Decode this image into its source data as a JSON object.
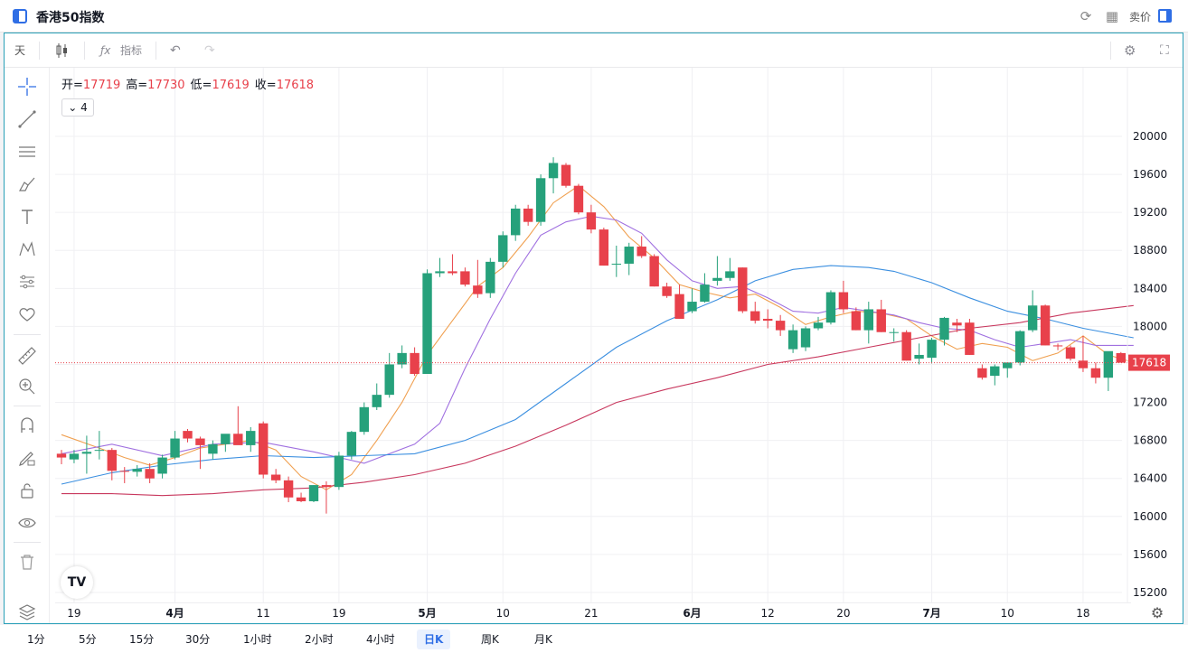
{
  "window": {
    "title": "香港50指数",
    "sell_label": "卖价"
  },
  "toolbar": {
    "interval": "天",
    "indicator_label": "指标"
  },
  "legend": {
    "open_label": "开=",
    "open": "17719",
    "high_label": "高=",
    "high": "17730",
    "low_label": "低=",
    "low": "17619",
    "close_label": "收=",
    "close": "17618",
    "indicator_count": "4"
  },
  "price_axis": {
    "ticks": [
      "20000",
      "19600",
      "19200",
      "18800",
      "18400",
      "18000",
      "17600",
      "17200",
      "16800",
      "16400",
      "16000",
      "15600",
      "15200"
    ],
    "last_price": "17618"
  },
  "x_axis": {
    "labels": [
      "19",
      "4月",
      "11",
      "19",
      "5月",
      "10",
      "21",
      "6月",
      "12",
      "20",
      "7月",
      "10",
      "18"
    ]
  },
  "timeframes": [
    {
      "label": "1分"
    },
    {
      "label": "5分"
    },
    {
      "label": "15分"
    },
    {
      "label": "30分"
    },
    {
      "label": "1小时"
    },
    {
      "label": "2小时"
    },
    {
      "label": "4小时"
    },
    {
      "label": "日K",
      "active": true
    },
    {
      "label": "周K"
    },
    {
      "label": "月K"
    }
  ],
  "colors": {
    "up": "#26a17b",
    "down": "#e8414b",
    "ma5": "#f0a050",
    "ma10": "#a070e0",
    "ma20": "#3b8fe0",
    "ma60": "#c8385e",
    "accent": "#2f6ee5"
  },
  "icons": {
    "left_tools": [
      "crosshair-icon",
      "trend-line-icon",
      "parallel-lines-icon",
      "brush-icon",
      "text-icon",
      "pattern-icon",
      "forecast-icon",
      "heart-icon",
      "ruler-icon",
      "zoom-in-icon",
      "magnet-icon",
      "lock-draw-icon",
      "lock-icon",
      "eye-icon",
      "trash-icon"
    ]
  },
  "chart_data": {
    "type": "candlestick",
    "title": "",
    "y_range": [
      15000,
      20200
    ],
    "x_tick_labels": [
      "19",
      "4月",
      "11",
      "19",
      "5月",
      "10",
      "21",
      "6月",
      "12",
      "20",
      "7月",
      "10",
      "18"
    ],
    "last_price": 17618,
    "candles": [
      [
        16660,
        16700,
        16550,
        16620
      ],
      [
        16600,
        16700,
        16560,
        16660
      ],
      [
        16660,
        16850,
        16450,
        16680
      ],
      [
        16700,
        16900,
        16600,
        16700
      ],
      [
        16700,
        16720,
        16380,
        16480
      ],
      [
        16480,
        16520,
        16350,
        16470
      ],
      [
        16470,
        16540,
        16420,
        16500
      ],
      [
        16500,
        16560,
        16350,
        16400
      ],
      [
        16450,
        16650,
        16400,
        16620
      ],
      [
        16620,
        16900,
        16600,
        16820
      ],
      [
        16900,
        16920,
        16780,
        16820
      ],
      [
        16820,
        16840,
        16500,
        16750
      ],
      [
        16660,
        16800,
        16600,
        16760
      ],
      [
        16760,
        16860,
        16680,
        16870
      ],
      [
        16870,
        17160,
        16760,
        16750
      ],
      [
        16750,
        16940,
        16680,
        16900
      ],
      [
        16980,
        17000,
        16400,
        16440
      ],
      [
        16440,
        16500,
        16350,
        16380
      ],
      [
        16380,
        16420,
        16150,
        16200
      ],
      [
        16200,
        16250,
        16150,
        16160
      ],
      [
        16160,
        16330,
        16150,
        16330
      ],
      [
        16330,
        16370,
        16030,
        16310
      ],
      [
        16310,
        16680,
        16280,
        16640
      ],
      [
        16640,
        16900,
        16600,
        16890
      ],
      [
        16890,
        17200,
        16860,
        17150
      ],
      [
        17150,
        17400,
        17120,
        17280
      ],
      [
        17280,
        17720,
        17250,
        17600
      ],
      [
        17600,
        17800,
        17560,
        17720
      ],
      [
        17720,
        17780,
        17480,
        17500
      ],
      [
        17500,
        18600,
        17500,
        18560
      ],
      [
        18560,
        18720,
        18520,
        18580
      ],
      [
        18580,
        18760,
        18540,
        18560
      ],
      [
        18580,
        18620,
        18420,
        18440
      ],
      [
        18430,
        18700,
        18300,
        18340
      ],
      [
        18350,
        18720,
        18300,
        18680
      ],
      [
        18680,
        19000,
        18620,
        18960
      ],
      [
        18960,
        19280,
        18900,
        19240
      ],
      [
        19240,
        19280,
        19060,
        19100
      ],
      [
        19100,
        19600,
        19060,
        19560
      ],
      [
        19560,
        19780,
        19400,
        19720
      ],
      [
        19700,
        19720,
        19460,
        19480
      ],
      [
        19480,
        19500,
        19180,
        19200
      ],
      [
        19200,
        19280,
        18980,
        19020
      ],
      [
        19020,
        19040,
        18640,
        18640
      ],
      [
        18660,
        18850,
        18520,
        18660
      ],
      [
        18660,
        18880,
        18540,
        18840
      ],
      [
        18840,
        18950,
        18720,
        18740
      ],
      [
        18740,
        18760,
        18420,
        18420
      ],
      [
        18420,
        18460,
        18300,
        18320
      ],
      [
        18340,
        18440,
        18080,
        18080
      ],
      [
        18160,
        18400,
        18140,
        18260
      ],
      [
        18260,
        18560,
        18250,
        18440
      ],
      [
        18480,
        18740,
        18430,
        18510
      ],
      [
        18510,
        18720,
        18480,
        18580
      ],
      [
        18620,
        18620,
        18140,
        18160
      ],
      [
        18160,
        18260,
        18030,
        18060
      ],
      [
        18080,
        18180,
        17980,
        18060
      ],
      [
        18060,
        18120,
        17900,
        17960
      ],
      [
        17760,
        18020,
        17720,
        17960
      ],
      [
        17780,
        18000,
        17740,
        17980
      ],
      [
        17980,
        18100,
        17960,
        18040
      ],
      [
        18040,
        18380,
        18020,
        18360
      ],
      [
        18360,
        18480,
        18140,
        18180
      ],
      [
        18160,
        18200,
        17960,
        17960
      ],
      [
        17960,
        18260,
        17820,
        18180
      ],
      [
        18180,
        18280,
        17940,
        17940
      ],
      [
        17940,
        17980,
        17840,
        17940
      ],
      [
        17940,
        17960,
        17640,
        17640
      ],
      [
        17660,
        17820,
        17600,
        17700
      ],
      [
        17670,
        17880,
        17610,
        17860
      ],
      [
        17860,
        18100,
        17800,
        18090
      ],
      [
        18040,
        18080,
        17940,
        18010
      ],
      [
        18040,
        18080,
        17700,
        17700
      ],
      [
        17560,
        17600,
        17440,
        17460
      ],
      [
        17480,
        17600,
        17380,
        17580
      ],
      [
        17560,
        17620,
        17460,
        17620
      ],
      [
        17620,
        17960,
        17590,
        17950
      ],
      [
        17960,
        18380,
        17940,
        18220
      ],
      [
        18220,
        18230,
        17800,
        17800
      ],
      [
        17800,
        17820,
        17750,
        17790
      ],
      [
        17780,
        17800,
        17640,
        17660
      ],
      [
        17640,
        17900,
        17520,
        17560
      ],
      [
        17560,
        17620,
        17400,
        17460
      ],
      [
        17460,
        17720,
        17320,
        17740
      ],
      [
        17719,
        17730,
        17619,
        17618
      ]
    ],
    "moving_averages": [
      {
        "name": "MA5",
        "points": [
          [
            0,
            16860
          ],
          [
            3,
            16720
          ],
          [
            5,
            16620
          ],
          [
            7,
            16540
          ],
          [
            9,
            16620
          ],
          [
            11,
            16720
          ],
          [
            13,
            16760
          ],
          [
            15,
            16800
          ],
          [
            17,
            16700
          ],
          [
            19,
            16420
          ],
          [
            21,
            16280
          ],
          [
            23,
            16440
          ],
          [
            25,
            16800
          ],
          [
            27,
            17200
          ],
          [
            29,
            17700
          ],
          [
            31,
            18060
          ],
          [
            33,
            18420
          ],
          [
            35,
            18620
          ],
          [
            37,
            18940
          ],
          [
            39,
            19300
          ],
          [
            41,
            19480
          ],
          [
            43,
            19260
          ],
          [
            45,
            18940
          ],
          [
            47,
            18720
          ],
          [
            49,
            18440
          ],
          [
            51,
            18360
          ],
          [
            53,
            18300
          ],
          [
            55,
            18340
          ],
          [
            57,
            18200
          ],
          [
            59,
            18020
          ],
          [
            61,
            18100
          ],
          [
            63,
            18160
          ],
          [
            65,
            18140
          ],
          [
            67,
            18080
          ],
          [
            69,
            17900
          ],
          [
            71,
            17760
          ],
          [
            73,
            17820
          ],
          [
            75,
            17780
          ],
          [
            77,
            17640
          ],
          [
            79,
            17720
          ],
          [
            81,
            17900
          ],
          [
            83,
            17700
          ],
          [
            85,
            17620
          ]
        ]
      },
      {
        "name": "MA10",
        "points": [
          [
            0,
            16660
          ],
          [
            4,
            16760
          ],
          [
            8,
            16640
          ],
          [
            12,
            16760
          ],
          [
            16,
            16780
          ],
          [
            20,
            16680
          ],
          [
            24,
            16560
          ],
          [
            28,
            16760
          ],
          [
            30,
            16980
          ],
          [
            32,
            17560
          ],
          [
            34,
            18080
          ],
          [
            36,
            18560
          ],
          [
            38,
            18960
          ],
          [
            40,
            19100
          ],
          [
            42,
            19160
          ],
          [
            44,
            19120
          ],
          [
            46,
            18980
          ],
          [
            48,
            18700
          ],
          [
            50,
            18480
          ],
          [
            52,
            18400
          ],
          [
            54,
            18420
          ],
          [
            56,
            18300
          ],
          [
            58,
            18160
          ],
          [
            60,
            18140
          ],
          [
            62,
            18200
          ],
          [
            64,
            18160
          ],
          [
            66,
            18120
          ],
          [
            68,
            18040
          ],
          [
            70,
            17980
          ],
          [
            72,
            17960
          ],
          [
            74,
            17860
          ],
          [
            76,
            17780
          ],
          [
            78,
            17820
          ],
          [
            80,
            17860
          ],
          [
            82,
            17800
          ],
          [
            85,
            17800
          ]
        ]
      },
      {
        "name": "MA20",
        "points": [
          [
            0,
            16340
          ],
          [
            4,
            16460
          ],
          [
            8,
            16540
          ],
          [
            12,
            16600
          ],
          [
            16,
            16640
          ],
          [
            20,
            16620
          ],
          [
            24,
            16640
          ],
          [
            28,
            16660
          ],
          [
            32,
            16800
          ],
          [
            36,
            17020
          ],
          [
            40,
            17400
          ],
          [
            44,
            17780
          ],
          [
            48,
            18060
          ],
          [
            52,
            18280
          ],
          [
            55,
            18480
          ],
          [
            58,
            18600
          ],
          [
            61,
            18640
          ],
          [
            64,
            18620
          ],
          [
            66,
            18580
          ],
          [
            69,
            18460
          ],
          [
            72,
            18300
          ],
          [
            75,
            18160
          ],
          [
            78,
            18080
          ],
          [
            81,
            17980
          ],
          [
            85,
            17880
          ]
        ]
      },
      {
        "name": "MA60",
        "points": [
          [
            0,
            16240
          ],
          [
            4,
            16240
          ],
          [
            8,
            16220
          ],
          [
            12,
            16240
          ],
          [
            16,
            16280
          ],
          [
            20,
            16300
          ],
          [
            24,
            16360
          ],
          [
            28,
            16440
          ],
          [
            32,
            16560
          ],
          [
            36,
            16740
          ],
          [
            40,
            16960
          ],
          [
            44,
            17200
          ],
          [
            48,
            17340
          ],
          [
            52,
            17460
          ],
          [
            56,
            17600
          ],
          [
            60,
            17680
          ],
          [
            64,
            17780
          ],
          [
            68,
            17880
          ],
          [
            72,
            17980
          ],
          [
            76,
            18040
          ],
          [
            80,
            18140
          ],
          [
            85,
            18220
          ]
        ]
      }
    ]
  }
}
